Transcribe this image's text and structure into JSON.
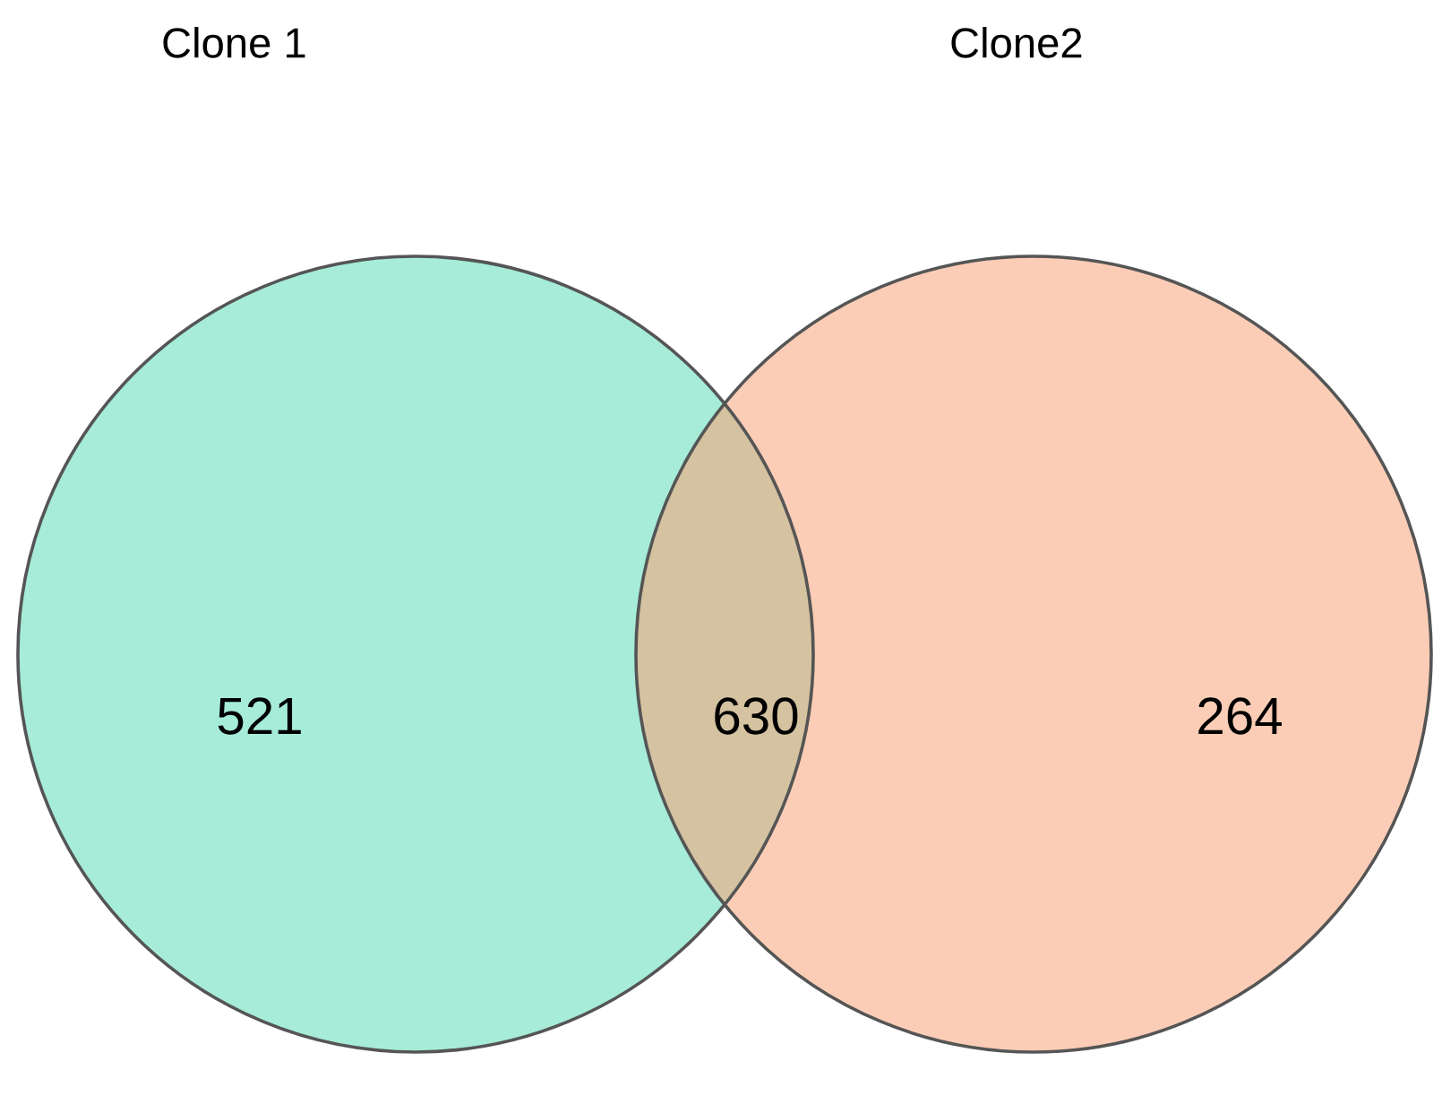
{
  "chart_data": {
    "type": "other",
    "categories": [
      null,
      null,
      null
    ],
    "colors": [
      "#a6ecd8",
      "#d4c2a0",
      "#fccdb6"
    ],
    "values": [
      521,
      630,
      264
    ],
    "data_labels": true,
    "annotations": [
      "Clone 1",
      "Clone2"
    ]
  }
}
